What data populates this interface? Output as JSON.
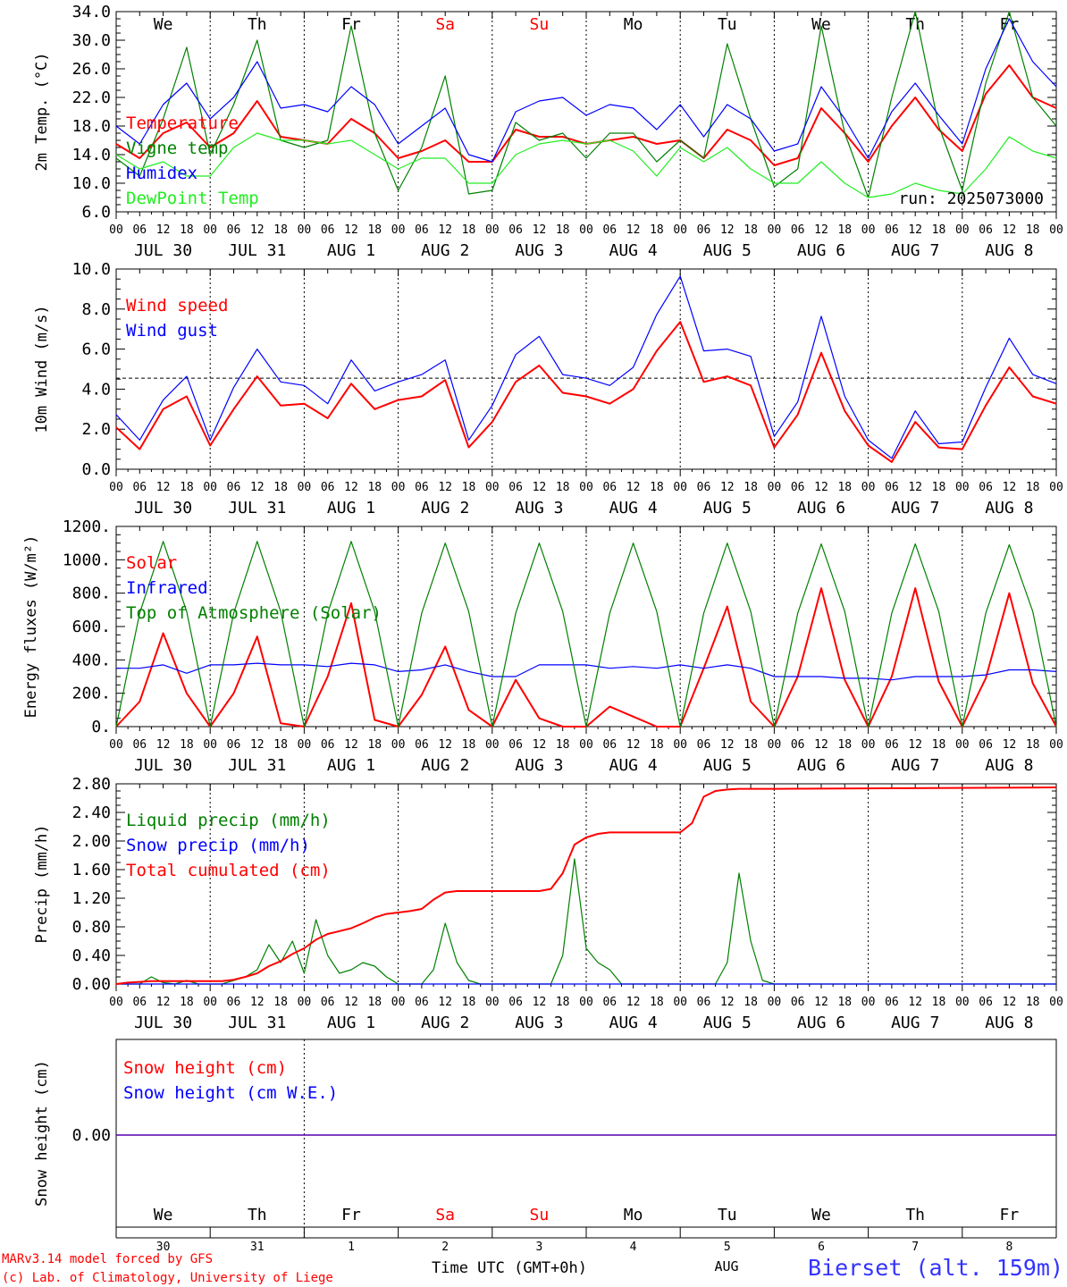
{
  "colors": {
    "red": "#ff0000",
    "blue": "#0000ff",
    "green": "#008000",
    "lightgreen": "#22ee22",
    "black": "#000000",
    "station_blue": "#3333ff"
  },
  "run_label": "run: 2025073000",
  "time_axis": {
    "hour_ticks": [
      "00",
      "06",
      "12",
      "18"
    ],
    "final_tick": "00",
    "dates": [
      "JUL 30",
      "JUL 31",
      "AUG  1",
      "AUG  2",
      "AUG  3",
      "AUG  4",
      "AUG  5",
      "AUG  6",
      "AUG  7",
      "AUG  8"
    ],
    "weekdays": [
      "We",
      "Th",
      "Fr",
      "Sa",
      "Su",
      "Mo",
      "Tu",
      "We",
      "Th",
      "Fr"
    ],
    "weekend_days": [
      3,
      4
    ],
    "day_numbers": [
      "30",
      "31",
      "1",
      "2",
      "3",
      "4",
      "5",
      "6",
      "7",
      "8"
    ],
    "month_label": "AUG",
    "axis_title": "Time UTC (GMT+0h)"
  },
  "footer": {
    "model_line": "MARv3.14 model forced by GFS",
    "lab_line": "(c) Lab. of Climatology, University of Liege",
    "station": "Bierset (alt. 159m)"
  },
  "chart_data": [
    {
      "type": "line",
      "ylabel": "2m Temp. (°C)",
      "ylim": [
        6.0,
        34.0
      ],
      "yticks": [
        "6.0",
        "10.0",
        "14.0",
        "18.0",
        "22.0",
        "26.0",
        "30.0",
        "34.0"
      ],
      "x_hours": [
        0,
        6,
        12,
        18,
        24,
        30,
        36,
        42,
        48,
        54,
        60,
        66,
        72,
        78,
        84,
        90,
        96,
        102,
        108,
        114,
        120,
        126,
        132,
        138,
        144,
        150,
        156,
        162,
        168,
        174,
        180,
        186,
        192,
        198,
        204,
        210,
        216,
        222,
        228,
        234,
        240
      ],
      "series": [
        {
          "name": "Temperature",
          "color": "red",
          "values": [
            15.5,
            13.5,
            17.0,
            18.5,
            15.0,
            17.0,
            21.5,
            16.5,
            16.0,
            15.5,
            19.0,
            17.0,
            13.5,
            14.5,
            16.0,
            13.0,
            13.0,
            17.5,
            16.5,
            16.5,
            15.5,
            16.0,
            16.5,
            15.5,
            16.0,
            13.5,
            17.5,
            16.0,
            12.5,
            13.5,
            20.5,
            17.0,
            13.0,
            18.0,
            22.0,
            17.5,
            14.5,
            22.5,
            26.5,
            22.0,
            20.5
          ]
        },
        {
          "name": "Vigne temp",
          "color": "green",
          "values": [
            13.5,
            11.0,
            19.0,
            29.0,
            14.0,
            21.0,
            30.0,
            16.0,
            15.0,
            16.0,
            32.0,
            17.0,
            9.0,
            15.0,
            25.0,
            8.5,
            9.0,
            18.5,
            16.0,
            17.0,
            13.5,
            17.0,
            17.0,
            13.0,
            16.0,
            13.5,
            29.5,
            19.0,
            9.5,
            12.0,
            32.0,
            17.0,
            8.0,
            22.0,
            34.0,
            18.0,
            9.0,
            24.0,
            34.0,
            22.0,
            18.0
          ]
        },
        {
          "name": "Humidex",
          "color": "blue",
          "values": [
            18.0,
            15.5,
            21.0,
            24.0,
            19.0,
            22.0,
            27.0,
            20.5,
            21.0,
            20.0,
            23.5,
            21.0,
            15.5,
            18.0,
            20.5,
            14.0,
            13.0,
            20.0,
            21.5,
            22.0,
            19.5,
            21.0,
            20.5,
            17.5,
            21.0,
            16.5,
            21.0,
            19.0,
            14.5,
            15.5,
            23.5,
            19.0,
            13.5,
            20.0,
            24.0,
            19.5,
            15.5,
            26.0,
            33.0,
            27.0,
            23.5
          ]
        },
        {
          "name": "DewPoint Temp",
          "color": "lightgreen",
          "values": [
            14.0,
            12.0,
            13.0,
            11.0,
            11.0,
            15.0,
            17.0,
            16.0,
            16.0,
            15.5,
            16.0,
            14.0,
            12.0,
            13.5,
            13.5,
            10.0,
            10.0,
            14.0,
            15.5,
            16.0,
            15.5,
            16.0,
            14.5,
            11.0,
            15.0,
            13.0,
            15.0,
            12.0,
            10.0,
            10.0,
            13.0,
            10.0,
            8.0,
            8.5,
            10.0,
            9.0,
            8.5,
            12.0,
            16.5,
            14.5,
            13.5
          ]
        }
      ]
    },
    {
      "type": "line",
      "ylabel": "10m Wind (m/s)",
      "ylim": [
        0.0,
        11.0
      ],
      "yticks": [
        "0.0",
        "2.0",
        "4.0",
        "6.0",
        "8.0",
        "10.0"
      ],
      "reference_line": 5.0,
      "x_hours": [
        0,
        6,
        12,
        18,
        24,
        30,
        36,
        42,
        48,
        54,
        60,
        66,
        72,
        78,
        84,
        90,
        96,
        102,
        108,
        114,
        120,
        126,
        132,
        138,
        144,
        150,
        156,
        162,
        168,
        174,
        180,
        186,
        192,
        198,
        204,
        210,
        216,
        222,
        228,
        234,
        240
      ],
      "series": [
        {
          "name": "Wind speed",
          "color": "red",
          "values": [
            2.3,
            1.1,
            3.3,
            4.0,
            1.3,
            3.3,
            5.1,
            3.5,
            3.6,
            2.8,
            4.7,
            3.3,
            3.8,
            4.0,
            4.9,
            1.2,
            2.6,
            4.8,
            5.7,
            4.2,
            4.0,
            3.6,
            4.4,
            6.5,
            8.1,
            4.8,
            5.1,
            4.6,
            1.2,
            3.0,
            6.4,
            3.2,
            1.3,
            0.4,
            2.6,
            1.2,
            1.1,
            3.5,
            5.6,
            4.0,
            3.6
          ]
        },
        {
          "name": "Wind gust",
          "color": "blue",
          "values": [
            3.0,
            1.6,
            3.8,
            5.1,
            1.6,
            4.5,
            6.6,
            4.8,
            4.6,
            3.6,
            6.0,
            4.3,
            4.8,
            5.2,
            6.0,
            1.6,
            3.5,
            6.3,
            7.3,
            5.2,
            5.0,
            4.6,
            5.6,
            8.5,
            10.6,
            6.5,
            6.6,
            6.2,
            1.8,
            3.7,
            8.4,
            4.0,
            1.6,
            0.6,
            3.2,
            1.4,
            1.5,
            4.5,
            7.2,
            5.2,
            4.7
          ]
        }
      ]
    },
    {
      "type": "line",
      "ylabel": "Energy fluxes (W/m²)",
      "ylim": [
        0,
        1200
      ],
      "yticks": [
        "0.",
        "200.",
        "400.",
        "600.",
        "800.",
        "1000.",
        "1200."
      ],
      "x_hours": [
        0,
        6,
        12,
        18,
        24,
        30,
        36,
        42,
        48,
        54,
        60,
        66,
        72,
        78,
        84,
        90,
        96,
        102,
        108,
        114,
        120,
        126,
        132,
        138,
        144,
        150,
        156,
        162,
        168,
        174,
        180,
        186,
        192,
        198,
        204,
        210,
        216,
        222,
        228,
        234,
        240
      ],
      "series": [
        {
          "name": "Solar",
          "color": "red",
          "values": [
            0,
            150,
            560,
            200,
            0,
            200,
            540,
            20,
            0,
            300,
            740,
            40,
            0,
            190,
            480,
            100,
            0,
            280,
            50,
            0,
            0,
            120,
            60,
            0,
            0,
            350,
            720,
            150,
            0,
            300,
            830,
            280,
            0,
            300,
            830,
            270,
            0,
            290,
            800,
            260,
            0
          ]
        },
        {
          "name": "Infrared",
          "color": "blue",
          "values": [
            350,
            350,
            370,
            320,
            370,
            370,
            380,
            370,
            370,
            360,
            380,
            370,
            330,
            340,
            370,
            330,
            300,
            300,
            370,
            370,
            370,
            350,
            360,
            350,
            370,
            350,
            370,
            350,
            300,
            300,
            300,
            290,
            290,
            280,
            300,
            300,
            300,
            310,
            340,
            340,
            330
          ]
        },
        {
          "name": "Top of Atmosphere (Solar)",
          "color": "green",
          "values": [
            0,
            680,
            1110,
            690,
            0,
            680,
            1110,
            690,
            0,
            680,
            1110,
            690,
            0,
            680,
            1100,
            690,
            0,
            680,
            1100,
            690,
            0,
            680,
            1100,
            690,
            0,
            680,
            1100,
            690,
            0,
            680,
            1095,
            690,
            0,
            680,
            1095,
            690,
            0,
            680,
            1090,
            690,
            0
          ]
        }
      ]
    },
    {
      "type": "line",
      "ylabel": "Precip (mm/h)",
      "ylim": [
        0.0,
        2.8
      ],
      "yticks": [
        "0.00",
        "0.40",
        "0.80",
        "1.20",
        "1.60",
        "2.00",
        "2.40",
        "2.80"
      ],
      "x_hours": [
        0,
        3,
        6,
        9,
        12,
        15,
        18,
        21,
        24,
        27,
        30,
        33,
        36,
        39,
        42,
        45,
        48,
        51,
        54,
        57,
        60,
        63,
        66,
        69,
        72,
        75,
        78,
        81,
        84,
        87,
        90,
        93,
        96,
        99,
        102,
        105,
        108,
        111,
        114,
        117,
        120,
        123,
        126,
        129,
        132,
        135,
        138,
        141,
        144,
        147,
        150,
        153,
        156,
        159,
        162,
        165,
        168,
        240
      ],
      "series": [
        {
          "name": "Liquid precip (mm/h)",
          "color": "green",
          "values": [
            0,
            0,
            0,
            0.1,
            0.02,
            0,
            0.05,
            0,
            0,
            0,
            0.05,
            0.1,
            0.2,
            0.55,
            0.3,
            0.6,
            0.15,
            0.9,
            0.4,
            0.15,
            0.2,
            0.3,
            0.25,
            0.1,
            0,
            0,
            0,
            0.2,
            0.85,
            0.3,
            0.05,
            0,
            0,
            0,
            0,
            0,
            0,
            0,
            0.4,
            1.75,
            0.5,
            0.3,
            0.2,
            0,
            0,
            0,
            0,
            0,
            0,
            0,
            0,
            0,
            0.3,
            1.55,
            0.6,
            0.05,
            0,
            0
          ]
        },
        {
          "name": "Snow precip (mm/h)",
          "color": "blue",
          "values": [
            0,
            0,
            0,
            0,
            0,
            0,
            0,
            0,
            0,
            0,
            0,
            0,
            0,
            0,
            0,
            0,
            0,
            0,
            0,
            0,
            0,
            0,
            0,
            0,
            0,
            0,
            0,
            0,
            0,
            0,
            0,
            0,
            0,
            0,
            0,
            0,
            0,
            0,
            0,
            0,
            0,
            0,
            0,
            0,
            0,
            0,
            0,
            0,
            0,
            0,
            0,
            0,
            0,
            0,
            0,
            0,
            0,
            0
          ]
        },
        {
          "name": "Total cumulated (cm)",
          "color": "red",
          "values": [
            0,
            0.02,
            0.03,
            0.04,
            0.04,
            0.04,
            0.04,
            0.04,
            0.04,
            0.04,
            0.06,
            0.1,
            0.15,
            0.25,
            0.32,
            0.42,
            0.5,
            0.62,
            0.7,
            0.74,
            0.78,
            0.85,
            0.93,
            0.98,
            1.0,
            1.02,
            1.05,
            1.18,
            1.28,
            1.3,
            1.3,
            1.3,
            1.3,
            1.3,
            1.3,
            1.3,
            1.3,
            1.33,
            1.55,
            1.95,
            2.05,
            2.1,
            2.12,
            2.12,
            2.12,
            2.12,
            2.12,
            2.12,
            2.12,
            2.25,
            2.62,
            2.7,
            2.72,
            2.73,
            2.73,
            2.73,
            2.73,
            2.75
          ]
        }
      ]
    },
    {
      "type": "line",
      "ylabel": "Snow height (cm)",
      "ytick": "0.00",
      "series": [
        {
          "name": "Snow height (cm)",
          "color": "red",
          "values": [
            0,
            0
          ]
        },
        {
          "name": "Snow height (cm W.E.)",
          "color": "blue",
          "values": [
            0,
            0
          ]
        }
      ]
    }
  ]
}
